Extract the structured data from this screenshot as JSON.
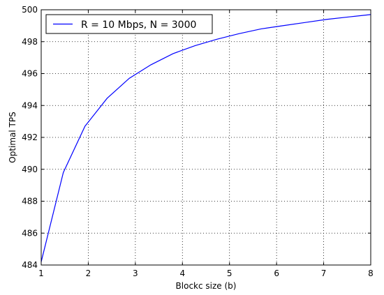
{
  "chart_data": {
    "type": "line",
    "xlabel": "Blockc size (b)",
    "ylabel": "Optimal TPS",
    "xlim": [
      1,
      8
    ],
    "ylim": [
      484,
      500
    ],
    "xticks": [
      1,
      2,
      3,
      4,
      5,
      6,
      7,
      8
    ],
    "yticks": [
      484,
      486,
      488,
      490,
      492,
      494,
      496,
      498,
      500
    ],
    "grid": true,
    "legend_position": "top-left",
    "series": [
      {
        "name": "R = 10 Mbps, N = 3000",
        "color": "#0000ff",
        "x": [
          1.0,
          1.47,
          1.93,
          2.4,
          2.87,
          3.33,
          3.8,
          4.27,
          4.73,
          5.2,
          5.67,
          6.13,
          6.6,
          7.07,
          7.53,
          8.0
        ],
        "y": [
          484.2,
          489.8,
          492.7,
          494.45,
          495.7,
          496.55,
          497.25,
          497.75,
          498.15,
          498.5,
          498.8,
          499.0,
          499.2,
          499.4,
          499.55,
          499.7
        ]
      }
    ]
  }
}
